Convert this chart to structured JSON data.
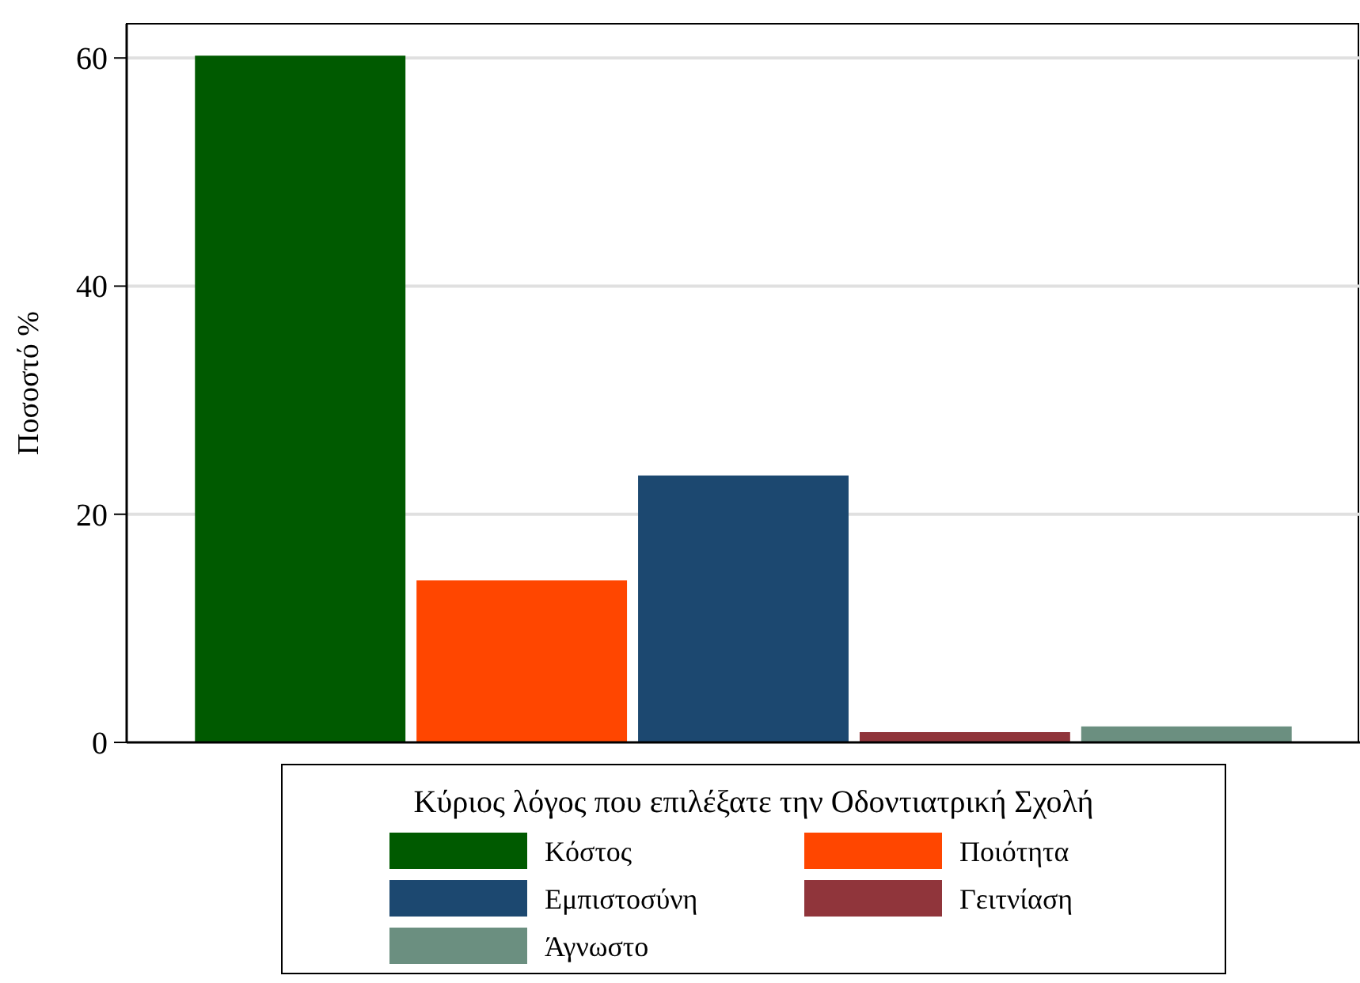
{
  "chart_data": {
    "type": "bar",
    "ylabel": "Ποσοστό %",
    "legend_title": "Κύριος λόγος που επιλέξατε την Οδοντιατρική Σχολή",
    "categories": [
      null
    ],
    "series": [
      {
        "name": "Κόστος",
        "color": "#005a00",
        "values": [
          60.2
        ]
      },
      {
        "name": "Ποιότητα",
        "color": "#ff4600",
        "values": [
          14.2
        ]
      },
      {
        "name": "Εμπιστοσύνη",
        "color": "#1c4870",
        "values": [
          23.4
        ]
      },
      {
        "name": "Γειτνίαση",
        "color": "#90353b",
        "values": [
          0.9
        ]
      },
      {
        "name": "Άγνωστο",
        "color": "#6b8f80",
        "values": [
          1.4
        ]
      }
    ],
    "ylim": [
      0,
      63
    ],
    "yticks": [
      0,
      20,
      40,
      60
    ],
    "grid": "y",
    "legend": "bottom"
  }
}
